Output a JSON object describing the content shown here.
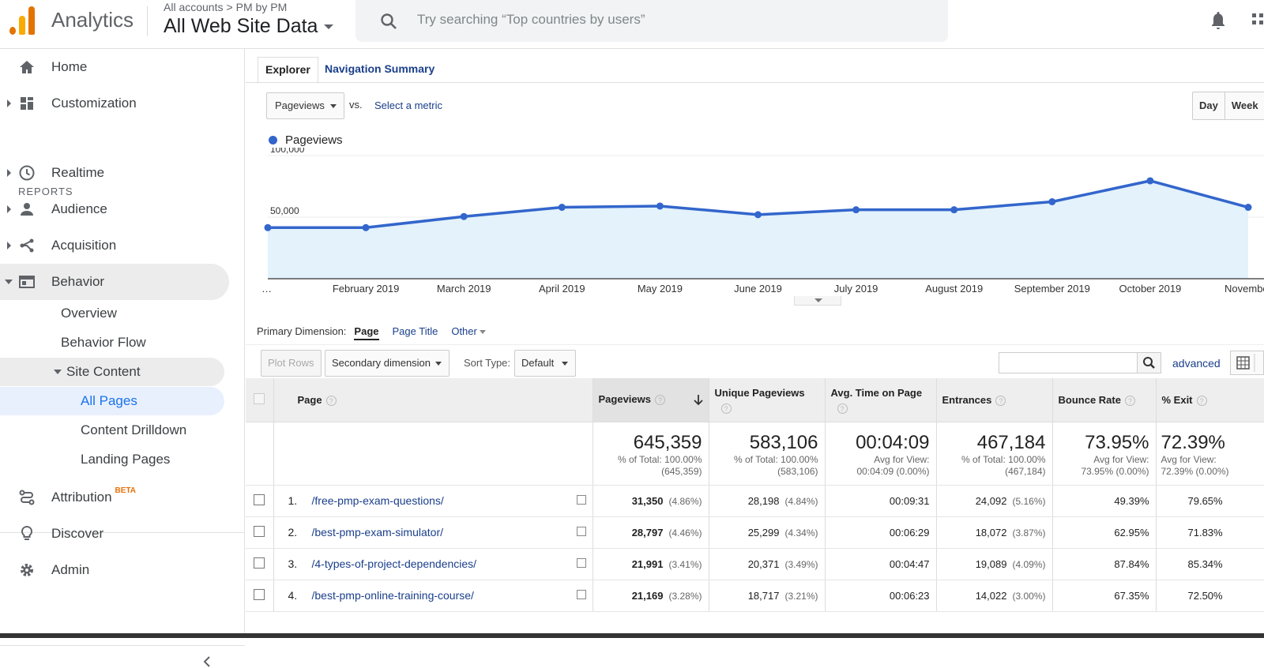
{
  "header": {
    "app_title": "Analytics",
    "breadcrumb_accounts": "All accounts",
    "breadcrumb_sep": ">",
    "breadcrumb_property": "PM by PM",
    "view_name": "All Web Site Data",
    "search_placeholder": "Try searching “Top countries by users”"
  },
  "sidebar": {
    "home": "Home",
    "customization": "Customization",
    "reports_label": "REPORTS",
    "realtime": "Realtime",
    "audience": "Audience",
    "acquisition": "Acquisition",
    "behavior": "Behavior",
    "behavior_overview": "Overview",
    "behavior_flow": "Behavior Flow",
    "site_content": "Site Content",
    "all_pages": "All Pages",
    "content_drilldown": "Content Drilldown",
    "landing_pages": "Landing Pages",
    "attribution": "Attribution",
    "beta": "BETA",
    "discover": "Discover",
    "admin": "Admin"
  },
  "tabs": {
    "explorer": "Explorer",
    "navigation_summary": "Navigation Summary"
  },
  "metric": {
    "selected": "Pageviews",
    "vs": "vs.",
    "select_metric": "Select a metric"
  },
  "granularity": {
    "day": "Day",
    "week": "Week"
  },
  "chart_data": {
    "type": "area",
    "series": [
      {
        "name": "Pageviews",
        "values": [
          41500,
          41500,
          50500,
          58000,
          59000,
          52000,
          56000,
          56000,
          62500,
          79500,
          58000
        ]
      }
    ],
    "x": [
      "…",
      "February 2019",
      "March 2019",
      "April 2019",
      "May 2019",
      "June 2019",
      "July 2019",
      "August 2019",
      "September 2019",
      "October 2019",
      "November"
    ],
    "yticks": [
      "100,000",
      "50,000"
    ],
    "ylim": [
      0,
      100000
    ],
    "color": "#3366cc",
    "fill": "#e3f2fb"
  },
  "dimension": {
    "label": "Primary Dimension:",
    "current": "Page",
    "page_title": "Page Title",
    "other": "Other"
  },
  "toolbar": {
    "plot_rows": "Plot Rows",
    "secondary": "Secondary dimension",
    "sort_type_label": "Sort Type:",
    "sort_type": "Default",
    "advanced": "advanced"
  },
  "table": {
    "headers": {
      "page": "Page",
      "pageviews": "Pageviews",
      "unique": "Unique Pageviews",
      "avg_time": "Avg. Time on Page",
      "entrances": "Entrances",
      "bounce": "Bounce Rate",
      "exit": "% Exit"
    },
    "totals": {
      "pageviews": "645,359",
      "pageviews_sub1": "% of Total: 100.00%",
      "pageviews_sub2": "(645,359)",
      "unique": "583,106",
      "unique_sub1": "% of Total: 100.00%",
      "unique_sub2": "(583,106)",
      "avg_time": "00:04:09",
      "avg_time_sub1": "Avg for View:",
      "avg_time_sub2": "00:04:09 (0.00%)",
      "entrances": "467,184",
      "entrances_sub1": "% of Total: 100.00%",
      "entrances_sub2": "(467,184)",
      "bounce": "73.95%",
      "bounce_sub1": "Avg for View:",
      "bounce_sub2": "73.95% (0.00%)",
      "exit": "72.39%",
      "exit_sub1": "Avg for View:",
      "exit_sub2": "72.39% (0.00%)"
    },
    "rows": [
      {
        "idx": "1.",
        "page": "/free-pmp-exam-questions/",
        "pv": "31,350",
        "pv_pct": "(4.86%)",
        "upv": "28,198",
        "upv_pct": "(4.84%)",
        "time": "00:09:31",
        "ent": "24,092",
        "ent_pct": "(5.16%)",
        "bounce": "49.39%",
        "exit": "79.65%"
      },
      {
        "idx": "2.",
        "page": "/best-pmp-exam-simulator/",
        "pv": "28,797",
        "pv_pct": "(4.46%)",
        "upv": "25,299",
        "upv_pct": "(4.34%)",
        "time": "00:06:29",
        "ent": "18,072",
        "ent_pct": "(3.87%)",
        "bounce": "62.95%",
        "exit": "71.83%"
      },
      {
        "idx": "3.",
        "page": "/4-types-of-project-dependencies/",
        "pv": "21,991",
        "pv_pct": "(3.41%)",
        "upv": "20,371",
        "upv_pct": "(3.49%)",
        "time": "00:04:47",
        "ent": "19,089",
        "ent_pct": "(4.09%)",
        "bounce": "87.84%",
        "exit": "85.34%"
      },
      {
        "idx": "4.",
        "page": "/best-pmp-online-training-course/",
        "pv": "21,169",
        "pv_pct": "(3.28%)",
        "upv": "18,717",
        "upv_pct": "(3.21%)",
        "time": "00:06:23",
        "ent": "14,022",
        "ent_pct": "(3.00%)",
        "bounce": "67.35%",
        "exit": "72.50%"
      }
    ]
  }
}
